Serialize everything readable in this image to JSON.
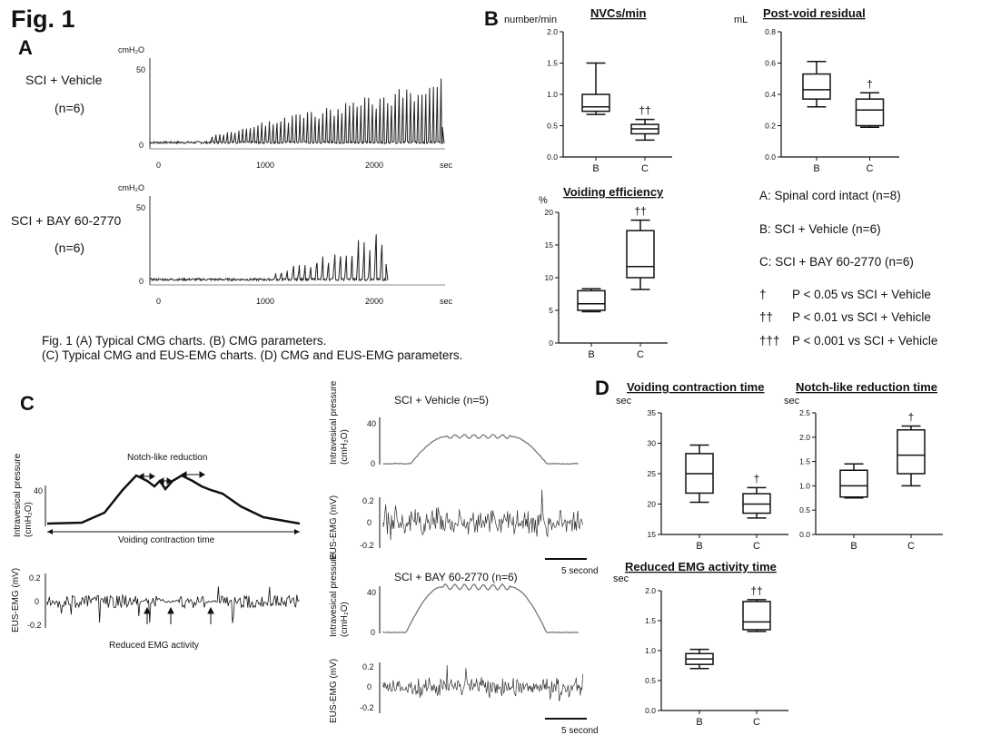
{
  "figure": {
    "title": "Fig. 1",
    "caption_line1": "Fig. 1 (A) Typical CMG charts. (B) CMG parameters.",
    "caption_line2": "(C) Typical CMG and EUS-EMG  charts. (D) CMG and EUS-EMG  parameters."
  },
  "panelA": {
    "letter": "A",
    "trace1": {
      "group": "SCI + Vehicle",
      "n": "(n=6)",
      "unit": "cmH₂O",
      "yticks": [
        "50",
        "0"
      ],
      "xticks": [
        "0",
        "1000",
        "2000",
        "sec"
      ]
    },
    "trace2": {
      "group": "SCI + BAY 60-2770",
      "n": "(n=6)",
      "unit": "cmH₂O",
      "yticks": [
        "50",
        "0"
      ],
      "xticks": [
        "0",
        "1000",
        "2000",
        "sec"
      ]
    }
  },
  "panelB": {
    "letter": "B"
  },
  "panelC": {
    "letter": "C",
    "notch_label": "Notch-like reduction",
    "void_label": "Voiding contraction time",
    "reduced_label": "Reduced EMG activity",
    "ivp_label": "Intravesical pressure",
    "ivp_unit": "(cmH₂O)",
    "emg_label": "EUS-EMG (mV)",
    "vehicle_title": "SCI + Vehicle (n=5)",
    "bay_title": "SCI + BAY 60-2770 (n=6)",
    "scale_label": "5 second",
    "ivp_ticks": [
      "40",
      "0"
    ],
    "emg_ticks": [
      "0.2",
      "0",
      "-0.2"
    ]
  },
  "panelD": {
    "letter": "D"
  },
  "legend": {
    "a": "A: Spinal cord intact (n=8)",
    "b": "B: SCI + Vehicle (n=6)",
    "c": "C: SCI + BAY 60-2770 (n=6)",
    "sig1_sym": "†",
    "sig1": "P < 0.05 vs SCI + Vehicle",
    "sig2_sym": "††",
    "sig2": "P < 0.01 vs SCI + Vehicle",
    "sig3_sym": "†††",
    "sig3": "P < 0.001 vs SCI + Vehicle"
  },
  "chart_data": [
    {
      "type": "box",
      "id": "nvcs",
      "title": "NVCs/min",
      "ylabel": "number/min",
      "ylim": [
        0,
        2.0
      ],
      "yticks": [
        "0.0",
        "0.5",
        "1.0",
        "1.5",
        "2.0"
      ],
      "categories": [
        "B",
        "C"
      ],
      "boxes": [
        {
          "min": 0.68,
          "q1": 0.73,
          "median": 0.8,
          "q3": 1.0,
          "max": 1.5,
          "sig": ""
        },
        {
          "min": 0.27,
          "q1": 0.37,
          "median": 0.45,
          "q3": 0.52,
          "max": 0.6,
          "sig": "††"
        }
      ]
    },
    {
      "type": "box",
      "id": "pvr",
      "title": "Post-void residual",
      "ylabel": "mL",
      "ylim": [
        0,
        0.8
      ],
      "yticks": [
        "0.0",
        "0.2",
        "0.4",
        "0.6",
        "0.8"
      ],
      "categories": [
        "B",
        "C"
      ],
      "boxes": [
        {
          "min": 0.32,
          "q1": 0.37,
          "median": 0.43,
          "q3": 0.53,
          "max": 0.61,
          "sig": ""
        },
        {
          "min": 0.19,
          "q1": 0.2,
          "median": 0.3,
          "q3": 0.37,
          "max": 0.41,
          "sig": "†"
        }
      ]
    },
    {
      "type": "box",
      "id": "ve",
      "title": "Voiding efficiency",
      "ylabel": "%",
      "ylim": [
        0,
        20
      ],
      "yticks": [
        "0",
        "5",
        "10",
        "15",
        "20"
      ],
      "categories": [
        "B",
        "C"
      ],
      "boxes": [
        {
          "min": 4.8,
          "q1": 5.0,
          "median": 6.0,
          "q3": 8.0,
          "max": 8.3,
          "sig": ""
        },
        {
          "min": 8.2,
          "q1": 10.0,
          "median": 11.7,
          "q3": 17.2,
          "max": 18.8,
          "sig": "††"
        }
      ]
    },
    {
      "type": "box",
      "id": "vct",
      "title": "Voiding contraction time",
      "ylabel": "sec",
      "ylim": [
        15,
        35
      ],
      "yticks": [
        "15",
        "20",
        "25",
        "30",
        "35"
      ],
      "categories": [
        "B",
        "C"
      ],
      "boxes": [
        {
          "min": 20.3,
          "q1": 21.8,
          "median": 25.0,
          "q3": 28.3,
          "max": 29.7,
          "sig": ""
        },
        {
          "min": 17.7,
          "q1": 18.5,
          "median": 20.0,
          "q3": 21.7,
          "max": 22.7,
          "sig": "†"
        }
      ]
    },
    {
      "type": "box",
      "id": "nrt",
      "title": "Notch-like reduction time",
      "ylabel": "sec",
      "ylim": [
        0,
        2.5
      ],
      "yticks": [
        "0.0",
        "0.5",
        "1.0",
        "1.5",
        "2.0",
        "2.5"
      ],
      "categories": [
        "B",
        "C"
      ],
      "boxes": [
        {
          "min": 0.75,
          "q1": 0.77,
          "median": 1.0,
          "q3": 1.32,
          "max": 1.45,
          "sig": ""
        },
        {
          "min": 1.0,
          "q1": 1.25,
          "median": 1.63,
          "q3": 2.15,
          "max": 2.23,
          "sig": "†"
        }
      ]
    },
    {
      "type": "box",
      "id": "remg",
      "title": "Reduced EMG activity time",
      "ylabel": "sec",
      "ylim": [
        0,
        2.0
      ],
      "yticks": [
        "0.0",
        "0.5",
        "1.0",
        "1.5",
        "2.0"
      ],
      "categories": [
        "B",
        "C"
      ],
      "boxes": [
        {
          "min": 0.7,
          "q1": 0.77,
          "median": 0.86,
          "q3": 0.95,
          "max": 1.02,
          "sig": ""
        },
        {
          "min": 1.32,
          "q1": 1.35,
          "median": 1.48,
          "q3": 1.82,
          "max": 1.85,
          "sig": "††"
        }
      ]
    }
  ]
}
